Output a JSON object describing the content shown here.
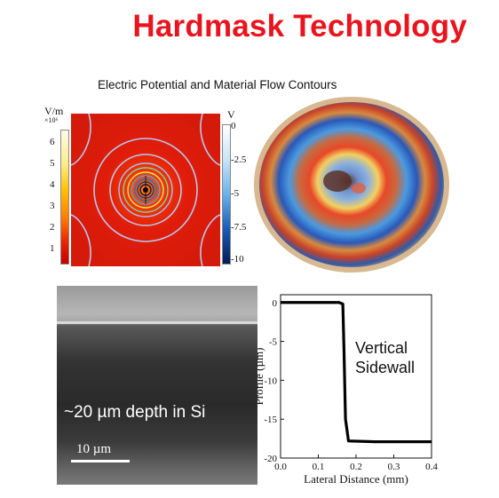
{
  "title": "Hardmask Technology",
  "subtitle": "Electric Potential and Material Flow Contours",
  "potential_panel": {
    "left_colorbar": {
      "unit": "V/m",
      "exponent": "×10⁶",
      "ticks": [
        "6",
        "5",
        "4",
        "3",
        "2",
        "1"
      ]
    },
    "right_colorbar": {
      "unit": "V",
      "ticks": [
        "0",
        "-2.5",
        "-5",
        "-7.5",
        "-10"
      ]
    }
  },
  "sem_panel": {
    "label": "~20 µm depth in Si",
    "scale": "10 µm"
  },
  "chart_data": {
    "type": "line",
    "title": "",
    "xlabel": "Lateral Distance (mm)",
    "ylabel": "Profile (µm)",
    "xlim": [
      0.0,
      0.4
    ],
    "ylim": [
      -20,
      1
    ],
    "xticks": [
      "0.0",
      "0.1",
      "0.2",
      "0.3",
      "0.4"
    ],
    "yticks": [
      "0",
      "-5",
      "-10",
      "-15",
      "-20"
    ],
    "annotation": "Vertical\nSidewall",
    "series": [
      {
        "x": [
          0.0,
          0.1,
          0.155,
          0.165,
          0.168,
          0.172,
          0.18,
          0.25,
          0.35,
          0.4
        ],
        "y": [
          0.0,
          0.0,
          0.0,
          -0.2,
          -6,
          -15,
          -17.8,
          -17.9,
          -17.9,
          -17.9
        ]
      }
    ]
  }
}
